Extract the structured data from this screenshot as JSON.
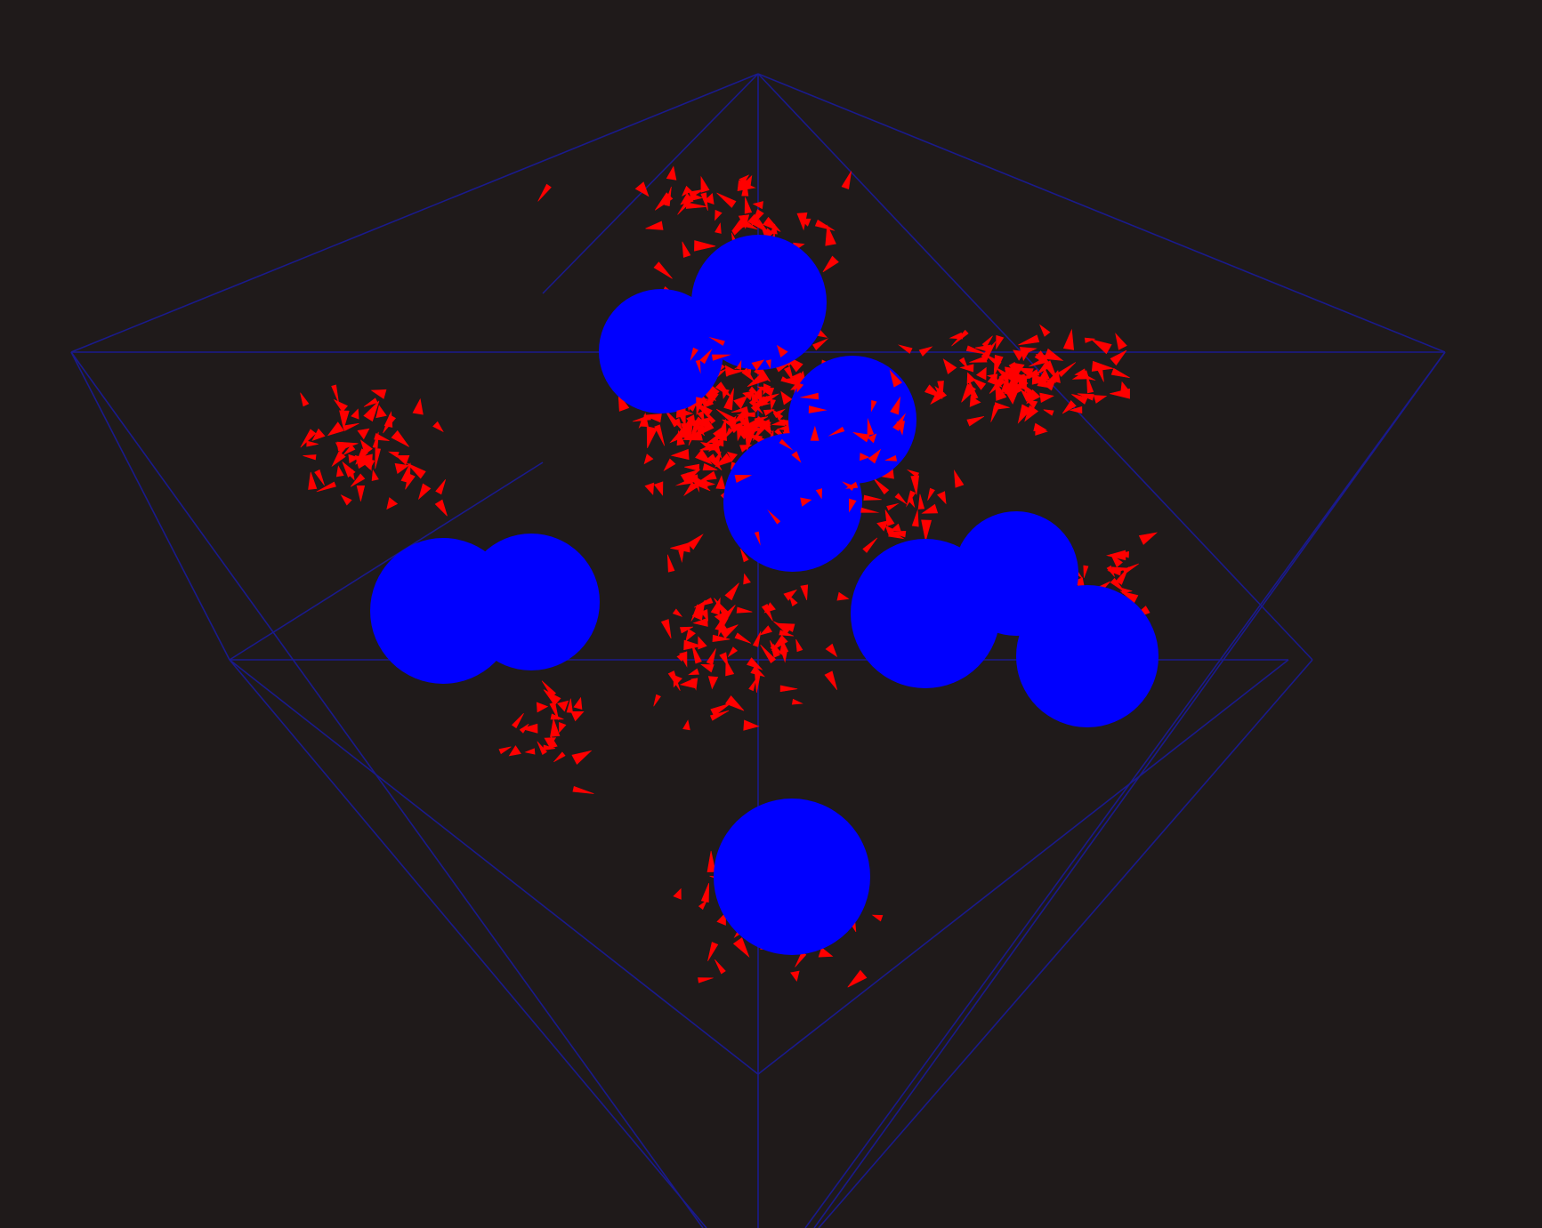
{
  "scene": {
    "background_color": "#1f1a1a",
    "wireframe_color": "#1a1a8c",
    "sphere_color": "#0000ff",
    "arrow_color": "#ff0000",
    "sphere_count": 12,
    "arrow_count_approx": 600,
    "icons": [
      "bounding-box-wireframe",
      "sphere",
      "arrow-glyph"
    ]
  }
}
